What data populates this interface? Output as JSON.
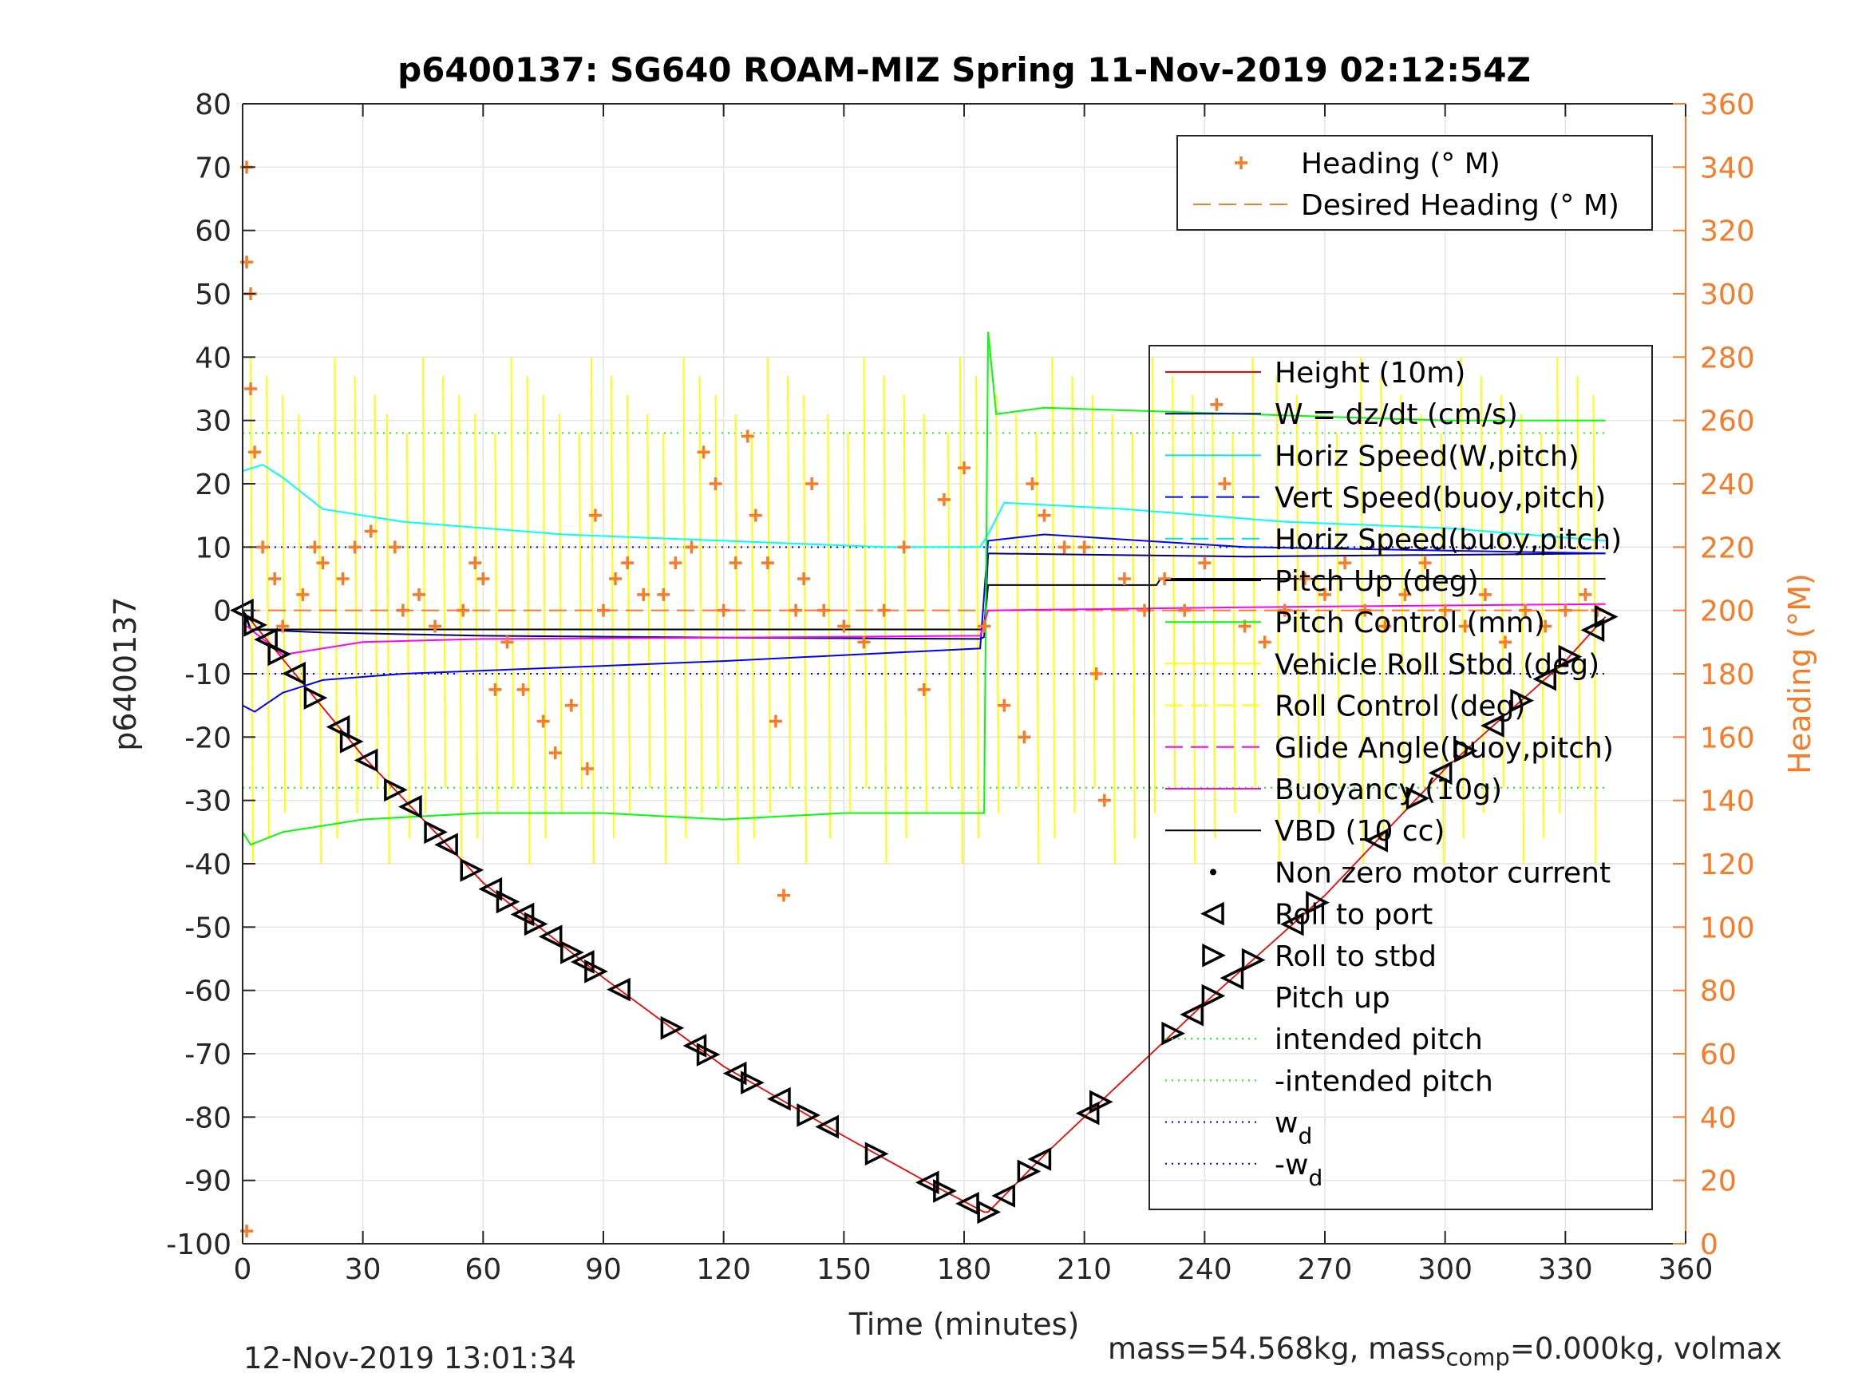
{
  "chart_data": {
    "type": "line",
    "title": "p6400137: SG640 ROAM-MIZ Spring 11-Nov-2019 02:12:54Z",
    "xlabel": "Time (minutes)",
    "ylabel_left": "p6400137",
    "ylabel_right": "Heading (°M)",
    "xlim": [
      0,
      360
    ],
    "ylim_left": [
      -100,
      80
    ],
    "ylim_right": [
      0,
      360
    ],
    "xticks": [
      0,
      30,
      60,
      90,
      120,
      150,
      180,
      210,
      240,
      270,
      300,
      330,
      360
    ],
    "yticks_left": [
      80,
      70,
      60,
      50,
      40,
      30,
      20,
      10,
      0,
      -10,
      -20,
      -30,
      -40,
      -50,
      -60,
      -70,
      -80,
      -90,
      -100
    ],
    "yticks_right": [
      360,
      340,
      320,
      300,
      280,
      260,
      240,
      220,
      200,
      180,
      160,
      140,
      120,
      100,
      80,
      60,
      40,
      20,
      0
    ],
    "grid": true,
    "legend_placement": "right, inside plot",
    "colors": {
      "heading": "#f97a27",
      "height": "#ff0000",
      "w": "#000080",
      "horiz_speed": "#00ffff",
      "vert_speed": "#0000ff",
      "pitch": "#00ff00",
      "roll": "#ffff00",
      "glide": "#ff00ff",
      "vbd": "#000000",
      "wd": "#0000ff"
    },
    "heading_legend": [
      {
        "label": "Heading (° M)",
        "style": "plus"
      },
      {
        "label": "Desired Heading (° M)",
        "style": "dashed"
      }
    ],
    "main_legend": [
      {
        "label": "Height (10m)",
        "color": "#ff0000",
        "style": "solid"
      },
      {
        "label": "W = dz/dt (cm/s)",
        "color": "#000080",
        "style": "solid"
      },
      {
        "label": "Horiz Speed(W,pitch)",
        "color": "#00e6e6",
        "style": "solid"
      },
      {
        "label": "Vert Speed(buoy,pitch)",
        "color": "#0000ff",
        "style": "dashed"
      },
      {
        "label": "Horiz Speed(buoy,pitch)",
        "color": "#00e6e6",
        "style": "dashed"
      },
      {
        "label": "Pitch Up (deg)",
        "color": "#000000",
        "style": "solid"
      },
      {
        "label": "Pitch Control (mm)",
        "color": "#00ff00",
        "style": "solid"
      },
      {
        "label": "Vehicle Roll Stbd (deg)",
        "color": "#ffff00",
        "style": "solid"
      },
      {
        "label": "Roll Control (deg)",
        "color": "#ffff00",
        "style": "dashed"
      },
      {
        "label": "Glide Angle(buoy,pitch)",
        "color": "#ff00ff",
        "style": "dashed"
      },
      {
        "label": "Buoyancy (10g)",
        "color": "#ff00ff",
        "style": "solid"
      },
      {
        "label": "VBD (10 cc)",
        "color": "#000000",
        "style": "solid"
      },
      {
        "label": "Non zero motor current",
        "color": "#000000",
        "style": "dot"
      },
      {
        "label": "Roll to port",
        "color": "#000000",
        "style": "tri-left"
      },
      {
        "label": "Roll to stbd",
        "color": "#000000",
        "style": "tri-right"
      },
      {
        "label": "Pitch up",
        "color": "#000000",
        "style": "none"
      },
      {
        "label": "intended pitch",
        "color": "#00ff00",
        "style": "dotted"
      },
      {
        "label": "-intended pitch",
        "color": "#00ff00",
        "style": "dotted"
      },
      {
        "label": "w",
        "sub": "d",
        "color": "#0000ff",
        "style": "dotted"
      },
      {
        "label": "-w",
        "sub": "d",
        "color": "#0000ff",
        "style": "dotted"
      }
    ],
    "series": [
      {
        "key": "height",
        "x": [
          0,
          30,
          60,
          90,
          120,
          150,
          170,
          185,
          186,
          200,
          215,
          240,
          270,
          300,
          330,
          340
        ],
        "y": [
          0,
          -23,
          -43,
          -58,
          -72,
          -83,
          -90,
          -95,
          -95,
          -86,
          -77,
          -62,
          -45,
          -25,
          -8,
          -1
        ]
      },
      {
        "key": "w",
        "x": [
          0,
          2,
          20,
          60,
          120,
          184,
          185,
          186,
          250,
          340
        ],
        "y": [
          0,
          -3,
          -3.5,
          -4,
          -4.3,
          -4.5,
          -4.2,
          9,
          8.5,
          9
        ]
      },
      {
        "key": "pitch_up",
        "x": [
          0,
          1,
          2,
          180,
          184,
          185,
          186,
          228,
          229,
          340
        ],
        "y": [
          0,
          -1,
          -3,
          -3,
          -3,
          -3,
          4,
          4,
          5,
          5
        ]
      },
      {
        "key": "horiz_speed",
        "x": [
          0,
          5,
          10,
          20,
          40,
          80,
          120,
          160,
          184,
          186,
          190,
          220,
          260,
          300,
          340
        ],
        "y": [
          22,
          23,
          21,
          16,
          14,
          12,
          11,
          10,
          10,
          12,
          17,
          16,
          14,
          13,
          11
        ]
      },
      {
        "key": "vert_speed",
        "x": [
          0,
          3,
          10,
          20,
          40,
          80,
          120,
          184,
          186,
          200,
          250,
          340
        ],
        "y": [
          -15,
          -16,
          -13,
          -11,
          -10,
          -9,
          -8,
          -6,
          11,
          12,
          10,
          9
        ]
      },
      {
        "key": "pitch_control",
        "x": [
          0,
          2,
          10,
          30,
          60,
          90,
          120,
          150,
          184,
          185,
          186,
          188,
          200,
          250,
          300,
          340
        ],
        "y": [
          -35,
          -37,
          -35,
          -33,
          -32,
          -32,
          -33,
          -32,
          -32,
          -32,
          44,
          31,
          32,
          31,
          30,
          30
        ]
      },
      {
        "key": "glide",
        "x": [
          0,
          10,
          30,
          60,
          120,
          184,
          186,
          250,
          340
        ],
        "y": [
          -2,
          -7,
          -5,
          -4.5,
          -4.3,
          -4,
          0,
          0.5,
          1
        ]
      },
      {
        "key": "desired_heading",
        "x": [
          0,
          340
        ],
        "y": [
          200,
          200
        ]
      }
    ],
    "heading_points": [
      [
        1,
        340
      ],
      [
        1,
        310
      ],
      [
        2,
        300
      ],
      [
        2,
        270
      ],
      [
        3,
        250
      ],
      [
        5,
        220
      ],
      [
        8,
        210
      ],
      [
        10,
        195
      ],
      [
        15,
        205
      ],
      [
        18,
        220
      ],
      [
        20,
        215
      ],
      [
        25,
        210
      ],
      [
        28,
        220
      ],
      [
        32,
        225
      ],
      [
        38,
        220
      ],
      [
        40,
        200
      ],
      [
        44,
        205
      ],
      [
        48,
        195
      ],
      [
        55,
        200
      ],
      [
        58,
        215
      ],
      [
        60,
        210
      ],
      [
        63,
        175
      ],
      [
        66,
        190
      ],
      [
        70,
        175
      ],
      [
        75,
        165
      ],
      [
        78,
        155
      ],
      [
        82,
        170
      ],
      [
        86,
        150
      ],
      [
        88,
        230
      ],
      [
        90,
        200
      ],
      [
        93,
        210
      ],
      [
        96,
        215
      ],
      [
        100,
        205
      ],
      [
        105,
        205
      ],
      [
        108,
        215
      ],
      [
        112,
        220
      ],
      [
        115,
        250
      ],
      [
        118,
        240
      ],
      [
        120,
        200
      ],
      [
        123,
        215
      ],
      [
        126,
        255
      ],
      [
        128,
        230
      ],
      [
        131,
        215
      ],
      [
        133,
        165
      ],
      [
        135,
        110
      ],
      [
        138,
        200
      ],
      [
        140,
        210
      ],
      [
        142,
        240
      ],
      [
        145,
        200
      ],
      [
        150,
        195
      ],
      [
        155,
        190
      ],
      [
        160,
        200
      ],
      [
        165,
        220
      ],
      [
        170,
        175
      ],
      [
        175,
        235
      ],
      [
        180,
        245
      ],
      [
        185,
        195
      ],
      [
        190,
        170
      ],
      [
        195,
        160
      ],
      [
        197,
        240
      ],
      [
        200,
        230
      ],
      [
        205,
        220
      ],
      [
        210,
        220
      ],
      [
        213,
        180
      ],
      [
        215,
        140
      ],
      [
        220,
        210
      ],
      [
        225,
        200
      ],
      [
        230,
        210
      ],
      [
        235,
        200
      ],
      [
        240,
        215
      ],
      [
        243,
        265
      ],
      [
        245,
        240
      ],
      [
        250,
        195
      ],
      [
        255,
        190
      ],
      [
        260,
        200
      ],
      [
        265,
        210
      ],
      [
        270,
        205
      ],
      [
        275,
        215
      ],
      [
        280,
        200
      ],
      [
        285,
        195
      ],
      [
        290,
        205
      ],
      [
        295,
        215
      ],
      [
        300,
        200
      ],
      [
        305,
        195
      ],
      [
        310,
        205
      ],
      [
        315,
        190
      ],
      [
        320,
        200
      ],
      [
        325,
        195
      ],
      [
        330,
        200
      ],
      [
        335,
        205
      ],
      [
        338,
        200
      ],
      [
        1,
        4
      ]
    ],
    "intended_pitch": 28,
    "wd": 10,
    "roll_markers_x": [
      0,
      3,
      6,
      9,
      13,
      18,
      24,
      27,
      31,
      38,
      42,
      48,
      51,
      57,
      62,
      66,
      70,
      73,
      77,
      82,
      85,
      88,
      94,
      107,
      113,
      116,
      123,
      127,
      134,
      141,
      146,
      158,
      171,
      175,
      181,
      186,
      190,
      196,
      199,
      214,
      211,
      232,
      237,
      242,
      247,
      252,
      262,
      268,
      283,
      293,
      299,
      305,
      312,
      319,
      325,
      331,
      337,
      340
    ]
  },
  "footer": {
    "date": "12-Nov-2019 13:01:34",
    "mass_text": "mass=54.568kg, mass",
    "mass_sub": "comp",
    "mass_rest": "=0.000kg, volmax"
  }
}
